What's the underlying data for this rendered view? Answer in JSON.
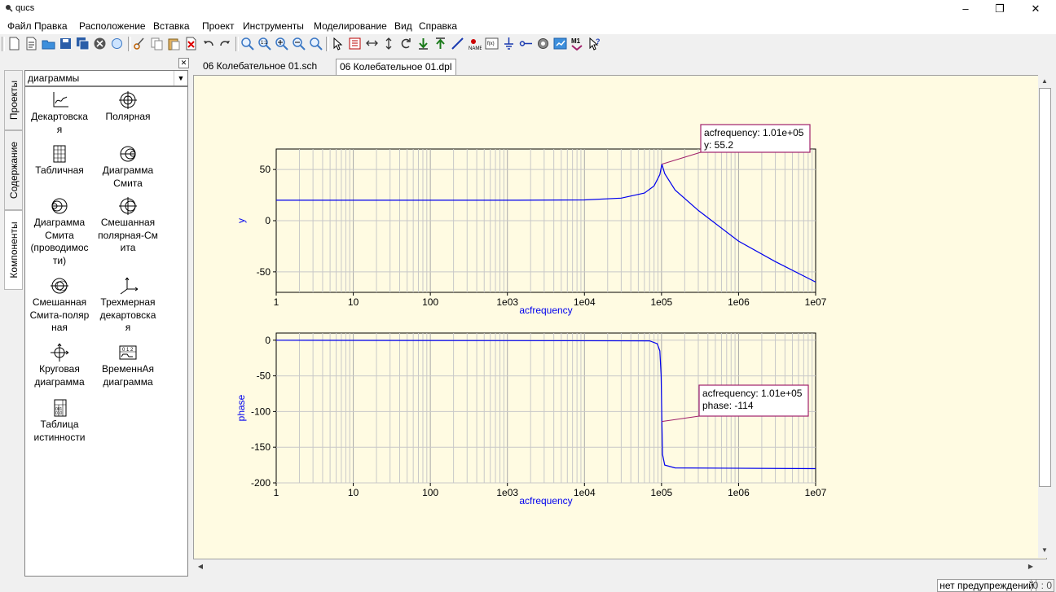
{
  "window": {
    "title": "qucs",
    "minimize": "–",
    "maximize": "❐",
    "close": "✕"
  },
  "menu": [
    "Файл",
    "Правка",
    "Расположение",
    "Вставка",
    "Проект",
    "Инструменты",
    "Моделирование",
    "Вид",
    "Справка"
  ],
  "sidetabs": [
    "Проекты",
    "Содержание",
    "Компоненты"
  ],
  "combo": {
    "value": "диаграммы"
  },
  "palette": [
    {
      "icon": "cartesian-diagram-icon",
      "label": "Декартовска\nя"
    },
    {
      "icon": "polar-diagram-icon",
      "label": "Полярная"
    },
    {
      "icon": "tabular-diagram-icon",
      "label": "Табличная"
    },
    {
      "icon": "smith-chart-icon",
      "label": "Диаграмма\nСмита"
    },
    {
      "icon": "smith-admittance-icon",
      "label": "Диаграмма\nСмита\n(проводимос\nти)"
    },
    {
      "icon": "polar-smith-icon",
      "label": "Смешанная\nполярная-См\nита"
    },
    {
      "icon": "smith-polar-icon",
      "label": "Смешанная\nСмита-поляр\nная"
    },
    {
      "icon": "3d-cartesian-icon",
      "label": "Трехмерная\nдекартовска\nя"
    },
    {
      "icon": "locus-curve-icon",
      "label": "Круговая\nдиаграмма"
    },
    {
      "icon": "timing-diagram-icon",
      "label": "ВременнАя\nдиаграмма"
    },
    {
      "icon": "truth-table-icon",
      "label": "Таблица\nистинности"
    }
  ],
  "tabs": [
    "06 Колебательное 01.sch",
    "06 Колебательное 01.dpl"
  ],
  "status": {
    "text": "нет предупреждений",
    "position": "0 : 0"
  },
  "colors": {
    "canvas": "#fffbe2",
    "trace": "#0000ee",
    "marker": "#a0206a",
    "label": "#0000ee"
  },
  "chart_data": [
    {
      "type": "line",
      "xscale": "log",
      "xlim": [
        1,
        10000000
      ],
      "ylim": [
        -70,
        70
      ],
      "xticks": [
        "1",
        "10",
        "100",
        "1e03",
        "1e04",
        "1e05",
        "1e06",
        "1e07"
      ],
      "yticks": [
        "50",
        "0",
        "-50"
      ],
      "xlabel": "acfrequency",
      "ylabel": "y",
      "grid": true,
      "series": [
        {
          "points": [
            [
              1,
              20
            ],
            [
              1000,
              20
            ],
            [
              10000,
              20.3
            ],
            [
              30000,
              22
            ],
            [
              60000,
              27
            ],
            [
              80000,
              34
            ],
            [
              95000,
              45
            ],
            [
              101000,
              55.2
            ],
            [
              110000,
              46
            ],
            [
              150000,
              30
            ],
            [
              300000,
              10
            ],
            [
              1000000,
              -20
            ],
            [
              3000000,
              -40
            ],
            [
              10000000,
              -60
            ]
          ]
        }
      ],
      "marker": {
        "lines": [
          "acfrequency: 1.01e+05",
          "y: 55.2"
        ],
        "x": 101000,
        "y": 55.2
      }
    },
    {
      "type": "line",
      "xscale": "log",
      "xlim": [
        1,
        10000000
      ],
      "ylim": [
        -200,
        10
      ],
      "xticks": [
        "1",
        "10",
        "100",
        "1e03",
        "1e04",
        "1e05",
        "1e06",
        "1e07"
      ],
      "yticks": [
        "0",
        "-50",
        "-100",
        "-150",
        "-200"
      ],
      "xlabel": "acfrequency",
      "ylabel": "phase",
      "grid": true,
      "series": [
        {
          "points": [
            [
              1,
              0
            ],
            [
              70000,
              -1
            ],
            [
              88000,
              -5
            ],
            [
              95000,
              -15
            ],
            [
              99000,
              -50
            ],
            [
              101000,
              -114
            ],
            [
              103000,
              -160
            ],
            [
              110000,
              -175
            ],
            [
              150000,
              -179
            ],
            [
              10000000,
              -180
            ]
          ]
        }
      ],
      "marker": {
        "lines": [
          "acfrequency: 1.01e+05",
          "phase: -114"
        ],
        "x": 101000,
        "y": -114
      }
    }
  ]
}
